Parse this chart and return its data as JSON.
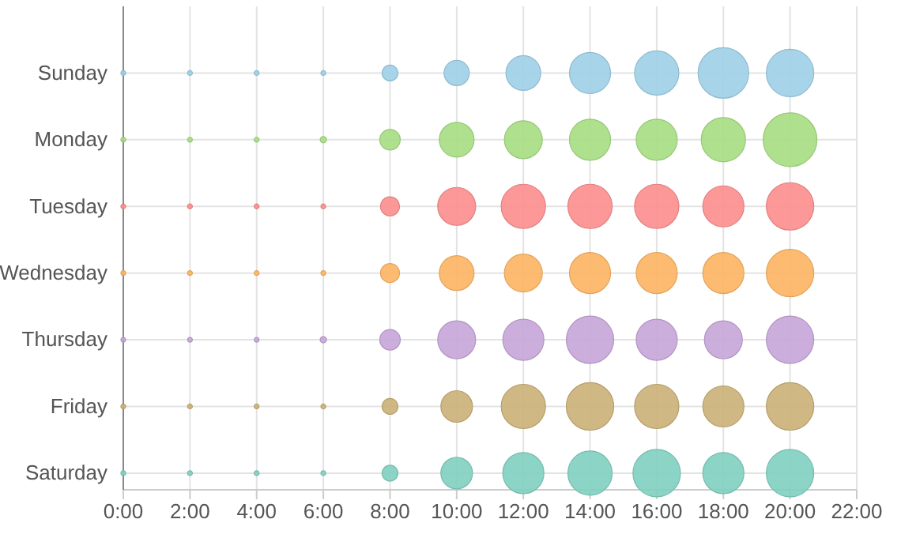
{
  "chart_data": {
    "type": "bubble",
    "orientation": "horizontal",
    "categories": [
      "Sunday",
      "Monday",
      "Tuesday",
      "Wednesday",
      "Thursday",
      "Friday",
      "Saturday"
    ],
    "xlim": [
      0,
      22
    ],
    "xticks": [
      {
        "value": 0,
        "label": "0:00"
      },
      {
        "value": 2,
        "label": "2:00"
      },
      {
        "value": 4,
        "label": "4:00"
      },
      {
        "value": 6,
        "label": "6:00"
      },
      {
        "value": 8,
        "label": "8:00"
      },
      {
        "value": 10,
        "label": "10:00"
      },
      {
        "value": 12,
        "label": "12:00"
      },
      {
        "value": 14,
        "label": "14:00"
      },
      {
        "value": 16,
        "label": "16:00"
      },
      {
        "value": 18,
        "label": "18:00"
      },
      {
        "value": 20,
        "label": "20:00"
      },
      {
        "value": 22,
        "label": "22:00"
      }
    ],
    "grid": true,
    "marker": "circle",
    "series": [
      {
        "colors": [
          "#9fcfe8",
          "#a6dd82",
          "#fc8d8d",
          "#fdb462",
          "#c5a5d8",
          "#cbb077",
          "#80d0c0"
        ],
        "values": [
          0,
          0,
          0,
          0,
          0,
          0,
          0
        ],
        "sizes": [
          0.008,
          0.008,
          0.008,
          0.008,
          0.008,
          0.008,
          0.008
        ]
      },
      {
        "colors": [
          "#9fcfe8",
          "#a6dd82",
          "#fc8d8d",
          "#fdb462",
          "#c5a5d8",
          "#cbb077",
          "#80d0c0"
        ],
        "values": [
          2,
          2,
          2,
          2,
          2,
          2,
          2
        ],
        "sizes": [
          0.008,
          0.008,
          0.008,
          0.008,
          0.008,
          0.008,
          0.008
        ]
      },
      {
        "colors": [
          "#9fcfe8",
          "#a6dd82",
          "#fc8d8d",
          "#fdb462",
          "#c5a5d8",
          "#cbb077",
          "#80d0c0"
        ],
        "values": [
          4,
          4,
          4,
          4,
          4,
          4,
          4
        ],
        "sizes": [
          0.008,
          0.008,
          0.008,
          0.008,
          0.008,
          0.008,
          0.008
        ]
      },
      {
        "colors": [
          "#9fcfe8",
          "#a6dd82",
          "#fc8d8d",
          "#fdb462",
          "#c5a5d8",
          "#cbb077",
          "#80d0c0"
        ],
        "values": [
          6,
          6,
          6,
          6,
          6,
          6,
          6
        ],
        "sizes": [
          0.008,
          0.014,
          0.008,
          0.008,
          0.014,
          0.008,
          0.008
        ]
      },
      {
        "colors": [
          "#9fcfe8",
          "#a6dd82",
          "#fc8d8d",
          "#fdb462",
          "#c5a5d8",
          "#cbb077",
          "#80d0c0"
        ],
        "values": [
          8,
          8,
          8,
          8,
          8,
          8,
          8
        ],
        "sizes": [
          0.087,
          0.146,
          0.125,
          0.125,
          0.146,
          0.087,
          0.087
        ]
      },
      {
        "colors": [
          "#9fcfe8",
          "#a6dd82",
          "#fc8d8d",
          "#fdb462",
          "#c5a5d8",
          "#cbb077",
          "#80d0c0"
        ],
        "values": [
          10,
          10,
          10,
          10,
          10,
          10,
          10
        ],
        "sizes": [
          0.221,
          0.419,
          0.498,
          0.419,
          0.498,
          0.346,
          0.346
        ]
      },
      {
        "colors": [
          "#9fcfe8",
          "#a6dd82",
          "#fc8d8d",
          "#fdb462",
          "#c5a5d8",
          "#cbb077",
          "#80d0c0"
        ],
        "values": [
          12,
          12,
          12,
          12,
          12,
          12,
          12
        ],
        "sizes": [
          0.419,
          0.498,
          0.678,
          0.498,
          0.585,
          0.678,
          0.585
        ]
      },
      {
        "colors": [
          "#9fcfe8",
          "#a6dd82",
          "#fc8d8d",
          "#fdb462",
          "#c5a5d8",
          "#cbb077",
          "#80d0c0"
        ],
        "values": [
          14,
          14,
          14,
          14,
          14,
          14,
          14
        ],
        "sizes": [
          0.585,
          0.585,
          0.678,
          0.585,
          0.779,
          0.779,
          0.678
        ]
      },
      {
        "colors": [
          "#9fcfe8",
          "#a6dd82",
          "#fc8d8d",
          "#fdb462",
          "#c5a5d8",
          "#cbb077",
          "#80d0c0"
        ],
        "values": [
          16,
          16,
          16,
          16,
          16,
          16,
          16
        ],
        "sizes": [
          0.678,
          0.585,
          0.678,
          0.585,
          0.585,
          0.678,
          0.779
        ]
      },
      {
        "colors": [
          "#9fcfe8",
          "#a6dd82",
          "#fc8d8d",
          "#fdb462",
          "#c5a5d8",
          "#cbb077",
          "#80d0c0"
        ],
        "values": [
          18,
          18,
          18,
          18,
          18,
          18,
          18
        ],
        "sizes": [
          0.886,
          0.678,
          0.585,
          0.585,
          0.498,
          0.585,
          0.585
        ]
      },
      {
        "colors": [
          "#9fcfe8",
          "#a6dd82",
          "#fc8d8d",
          "#fdb462",
          "#c5a5d8",
          "#cbb077",
          "#80d0c0"
        ],
        "values": [
          20,
          20,
          20,
          20,
          20,
          20,
          20
        ],
        "sizes": [
          0.779,
          1,
          0.779,
          0.779,
          0.779,
          0.779,
          0.779
        ]
      }
    ]
  }
}
